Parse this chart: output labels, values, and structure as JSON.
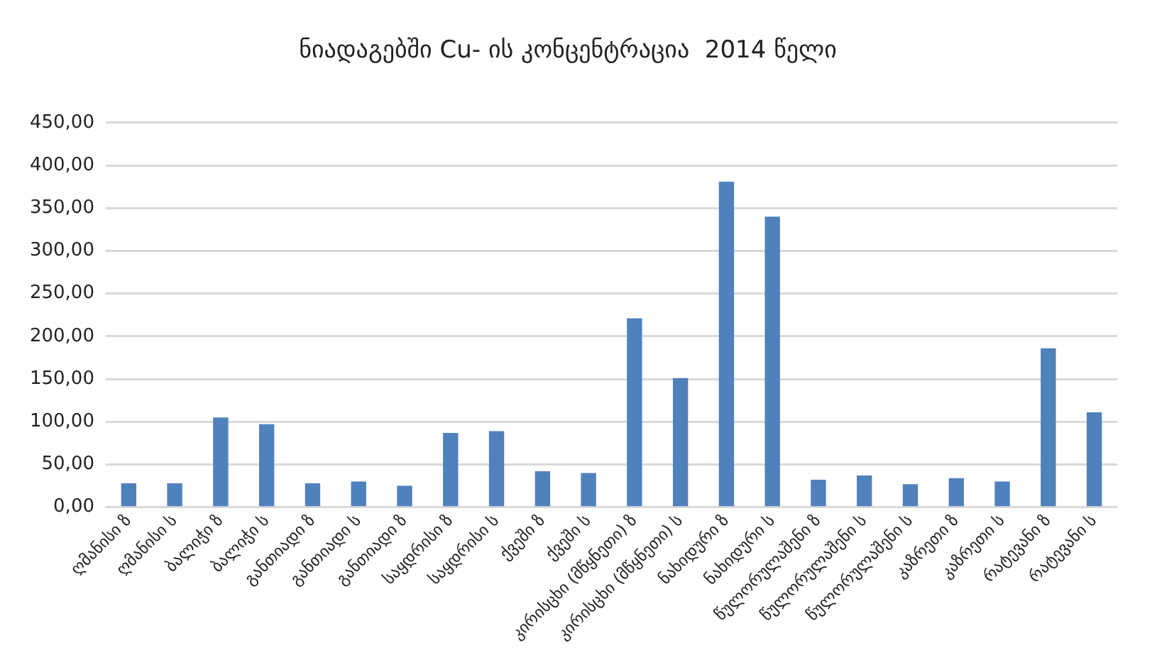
{
  "chart_data": {
    "type": "bar",
    "title": "ნიადაგებში Cu- ის კონცენტრაცია  2014 წელი",
    "categories": [
      "ღმანისი ზ",
      "ღმანისი ს",
      "ბალიჭი ზ",
      "ბალიჭი ს",
      "განთიადი ზ",
      "განთიადი ს",
      "განთიადი ზ",
      "საყდრისი ზ",
      "საყდრისი ს",
      "ქვეში ზ",
      "ქვეში ს",
      "კირისცხი (მწყნეთი) ზ",
      "კირისცხი (მწყნეთი) ს",
      "ნახიდური ზ",
      "ნახიდური ს",
      "წულორულაშენი ზ",
      "წულორულაშენი ს",
      "წულორულაშენი ს",
      "კაზრეთი ზ",
      "კაზრეთი ს",
      "რატევანი ზ",
      "რატევანი ს"
    ],
    "values": [
      28,
      28,
      105,
      97,
      28,
      30,
      25,
      87,
      89,
      42,
      40,
      221,
      151,
      381,
      340,
      32,
      37,
      27,
      34,
      30,
      186,
      111
    ],
    "color": "#4f81bd",
    "ylim": [
      0,
      450
    ],
    "yticks": [
      {
        "value": 0,
        "label": "0,00"
      },
      {
        "value": 50,
        "label": "50,00"
      },
      {
        "value": 100,
        "label": "100,00"
      },
      {
        "value": 150,
        "label": "150,00"
      },
      {
        "value": 200,
        "label": "200,00"
      },
      {
        "value": 250,
        "label": "250,00"
      },
      {
        "value": 300,
        "label": "300,00"
      },
      {
        "value": 350,
        "label": "350,00"
      },
      {
        "value": 400,
        "label": "400,00"
      },
      {
        "value": 450,
        "label": "450,00"
      }
    ],
    "grid": "y"
  }
}
